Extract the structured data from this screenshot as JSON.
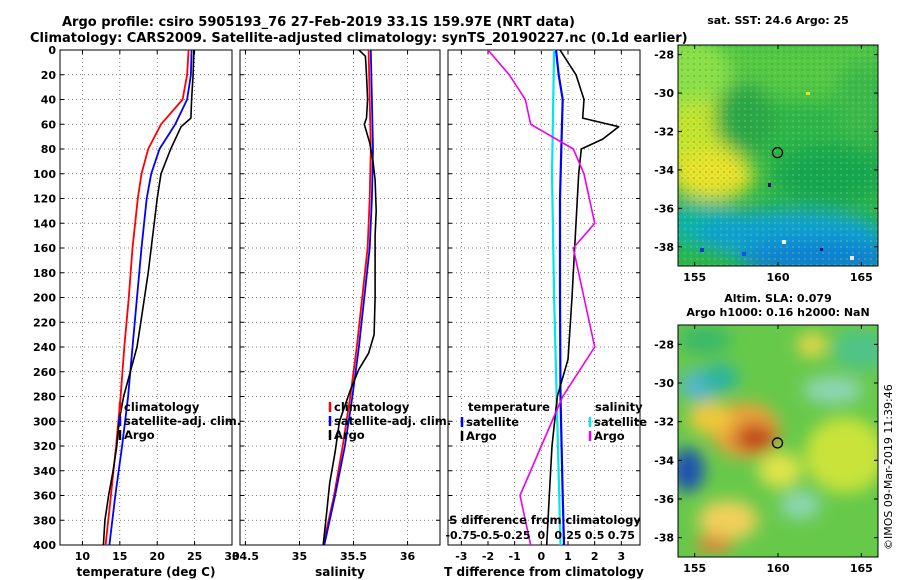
{
  "header": {
    "line1": "Argo profile: csiro 5905193_76 27-Feb-2019 33.1S 159.97E (NRT data)",
    "line2": "Climatology: CARS2009. Satellite-adjusted climatology: synTS_20190227.nc (0.1d earlier)"
  },
  "credit": "©IMOS 09-Mar-2019 11:39:46",
  "colors": {
    "climatology": "#ff0000",
    "satellite": "#0000ff",
    "argo": "#000000",
    "sat_salinity": "#00e5ee",
    "argo_salinity_diff": "#ee00ee",
    "clim_salinity_diff": "#800080"
  },
  "chart_data": [
    {
      "type": "line",
      "id": "temperature",
      "xlabel": "temperature (deg C)",
      "ylabel": "",
      "xlim": [
        7,
        30
      ],
      "ylim": [
        400,
        0
      ],
      "xticks": [
        "10",
        "15",
        "20",
        "25",
        "30"
      ],
      "yticks": [
        "0",
        "20",
        "40",
        "60",
        "80",
        "100",
        "120",
        "140",
        "160",
        "180",
        "200",
        "220",
        "240",
        "260",
        "280",
        "300",
        "320",
        "340",
        "360",
        "380",
        "400"
      ],
      "legend": [
        "climatology",
        "satellite-adj. clim.",
        "Argo"
      ],
      "series": [
        {
          "name": "climatology",
          "points": [
            [
              24.2,
              0
            ],
            [
              24,
              20
            ],
            [
              23.4,
              40
            ],
            [
              20.5,
              60
            ],
            [
              18.8,
              80
            ],
            [
              17.9,
              100
            ],
            [
              17.4,
              120
            ],
            [
              16.7,
              160
            ],
            [
              16.2,
              200
            ],
            [
              15.6,
              240
            ],
            [
              15.1,
              280
            ],
            [
              14.5,
              320
            ],
            [
              13.8,
              360
            ],
            [
              13.1,
              400
            ]
          ]
        },
        {
          "name": "satellite-adj. clim.",
          "points": [
            [
              24.6,
              0
            ],
            [
              24.5,
              20
            ],
            [
              24,
              40
            ],
            [
              22.4,
              60
            ],
            [
              20.3,
              80
            ],
            [
              19.2,
              100
            ],
            [
              18.6,
              120
            ],
            [
              17.9,
              160
            ],
            [
              17.3,
              200
            ],
            [
              16.7,
              240
            ],
            [
              16.1,
              280
            ],
            [
              15.3,
              320
            ],
            [
              14.4,
              360
            ],
            [
              13.6,
              400
            ]
          ]
        },
        {
          "name": "Argo",
          "points": [
            [
              24.9,
              0
            ],
            [
              24.8,
              20
            ],
            [
              24.6,
              40
            ],
            [
              24.5,
              55
            ],
            [
              23.2,
              62
            ],
            [
              21.8,
              80
            ],
            [
              20.5,
              100
            ],
            [
              20,
              120
            ],
            [
              19.6,
              140
            ],
            [
              19.2,
              160
            ],
            [
              18.8,
              180
            ],
            [
              18.3,
              200
            ],
            [
              17.8,
              220
            ],
            [
              17.3,
              240
            ],
            [
              16.4,
              260
            ],
            [
              15.5,
              280
            ],
            [
              14.9,
              300
            ],
            [
              14.6,
              320
            ],
            [
              14.1,
              340
            ],
            [
              13.5,
              360
            ],
            [
              13,
              380
            ],
            [
              12.8,
              400
            ]
          ]
        }
      ]
    },
    {
      "type": "line",
      "id": "salinity",
      "xlabel": "salinity",
      "ylabel": "",
      "xlim": [
        34.45,
        36.3
      ],
      "ylim": [
        400,
        0
      ],
      "xticks": [
        "34.5",
        "35",
        "35.5",
        "36"
      ],
      "legend": [
        "climatology",
        "satellite-adj. clim.",
        "Argo"
      ],
      "series": [
        {
          "name": "climatology",
          "points": [
            [
              35.64,
              0
            ],
            [
              35.65,
              40
            ],
            [
              35.66,
              80
            ],
            [
              35.65,
              120
            ],
            [
              35.63,
              160
            ],
            [
              35.58,
              200
            ],
            [
              35.53,
              240
            ],
            [
              35.47,
              280
            ],
            [
              35.4,
              320
            ],
            [
              35.32,
              360
            ],
            [
              35.22,
              400
            ]
          ]
        },
        {
          "name": "satellite-adj. clim.",
          "points": [
            [
              35.66,
              0
            ],
            [
              35.67,
              40
            ],
            [
              35.68,
              80
            ],
            [
              35.67,
              120
            ],
            [
              35.65,
              160
            ],
            [
              35.6,
              200
            ],
            [
              35.55,
              240
            ],
            [
              35.49,
              280
            ],
            [
              35.42,
              320
            ],
            [
              35.33,
              360
            ],
            [
              35.23,
              400
            ]
          ]
        },
        {
          "name": "Argo",
          "points": [
            [
              35.55,
              0
            ],
            [
              35.61,
              5
            ],
            [
              35.62,
              20
            ],
            [
              35.63,
              40
            ],
            [
              35.62,
              55
            ],
            [
              35.6,
              60
            ],
            [
              35.65,
              75
            ],
            [
              35.68,
              90
            ],
            [
              35.7,
              105
            ],
            [
              35.71,
              130
            ],
            [
              35.7,
              150
            ],
            [
              35.7,
              175
            ],
            [
              35.7,
              200
            ],
            [
              35.69,
              230
            ],
            [
              35.64,
              245
            ],
            [
              35.55,
              258
            ],
            [
              35.47,
              275
            ],
            [
              35.37,
              300
            ],
            [
              35.33,
              325
            ],
            [
              35.28,
              350
            ],
            [
              35.25,
              375
            ],
            [
              35.22,
              400
            ]
          ]
        }
      ]
    },
    {
      "type": "line",
      "id": "difference",
      "xlabel": "T difference from climatology",
      "x2label": "S difference from climatology",
      "xlim": [
        -3.5,
        3.7
      ],
      "ylim": [
        400,
        0
      ],
      "xticks": [
        "-3",
        "-2",
        "-1",
        "0",
        "1",
        "2",
        "3"
      ],
      "x2ticks": [
        "-0.75",
        "-0.5",
        "-0.25",
        "0",
        "0.25",
        "0.5",
        "0.75"
      ],
      "legend_temperature": {
        "title": "temperature",
        "items": [
          "satellite",
          "Argo"
        ]
      },
      "legend_salinity": {
        "title": "salinity",
        "items": [
          "satellite",
          "Argo"
        ]
      },
      "series": [
        {
          "name": "temperature satellite",
          "points": [
            [
              0.55,
              0
            ],
            [
              0.65,
              20
            ],
            [
              0.8,
              40
            ],
            [
              0.75,
              80
            ],
            [
              0.7,
              120
            ],
            [
              0.7,
              200
            ],
            [
              0.72,
              280
            ],
            [
              0.8,
              360
            ],
            [
              0.85,
              400
            ]
          ]
        },
        {
          "name": "salinity satellite",
          "points": [
            [
              0.12,
              0
            ],
            [
              0.1,
              100
            ],
            [
              0.12,
              200
            ],
            [
              0.15,
              300
            ],
            [
              0.18,
              400
            ]
          ]
        },
        {
          "name": "temperature Argo",
          "points": [
            [
              0.7,
              0
            ],
            [
              1.3,
              20
            ],
            [
              1.6,
              40
            ],
            [
              1.55,
              55
            ],
            [
              2.9,
              62
            ],
            [
              2.3,
              72
            ],
            [
              1.5,
              80
            ],
            [
              1.4,
              100
            ],
            [
              1.3,
              140
            ],
            [
              1.2,
              180
            ],
            [
              1.15,
              200
            ],
            [
              1,
              250
            ],
            [
              0.6,
              280
            ],
            [
              0.4,
              320
            ],
            [
              0.3,
              360
            ],
            [
              0.2,
              400
            ]
          ]
        },
        {
          "name": "salinity Argo",
          "points": [
            [
              -0.5,
              0
            ],
            [
              -0.3,
              20
            ],
            [
              -0.15,
              40
            ],
            [
              -0.1,
              60
            ],
            [
              0.3,
              80
            ],
            [
              0.4,
              100
            ],
            [
              0.5,
              140
            ],
            [
              0.3,
              160
            ],
            [
              0.4,
              200
            ],
            [
              0.5,
              240
            ],
            [
              0.2,
              280
            ],
            [
              0,
              320
            ],
            [
              -0.2,
              360
            ],
            [
              -0.1,
              400
            ]
          ]
        }
      ]
    },
    {
      "type": "heatmap",
      "id": "sst_map",
      "title": "sat. SST: 24.6 Argo: 25",
      "xlim": [
        154,
        166
      ],
      "ylim": [
        -39,
        -27.5
      ],
      "xticks": [
        "155",
        "160",
        "165"
      ],
      "yticks": [
        "-28",
        "-30",
        "-32",
        "-34",
        "-36",
        "-38"
      ],
      "argo_position": {
        "lon": 159.97,
        "lat": -33.1
      }
    },
    {
      "type": "heatmap",
      "id": "sla_map",
      "title": "Altim. SLA: 0.079",
      "subtitle": "Argo h1000: 0.16 h2000: NaN",
      "xlim": [
        154,
        166
      ],
      "ylim": [
        -39,
        -27
      ],
      "xticks": [
        "155",
        "160",
        "165"
      ],
      "yticks": [
        "-28",
        "-30",
        "-32",
        "-34",
        "-36",
        "-38"
      ],
      "argo_position": {
        "lon": 159.97,
        "lat": -33.1
      }
    }
  ]
}
